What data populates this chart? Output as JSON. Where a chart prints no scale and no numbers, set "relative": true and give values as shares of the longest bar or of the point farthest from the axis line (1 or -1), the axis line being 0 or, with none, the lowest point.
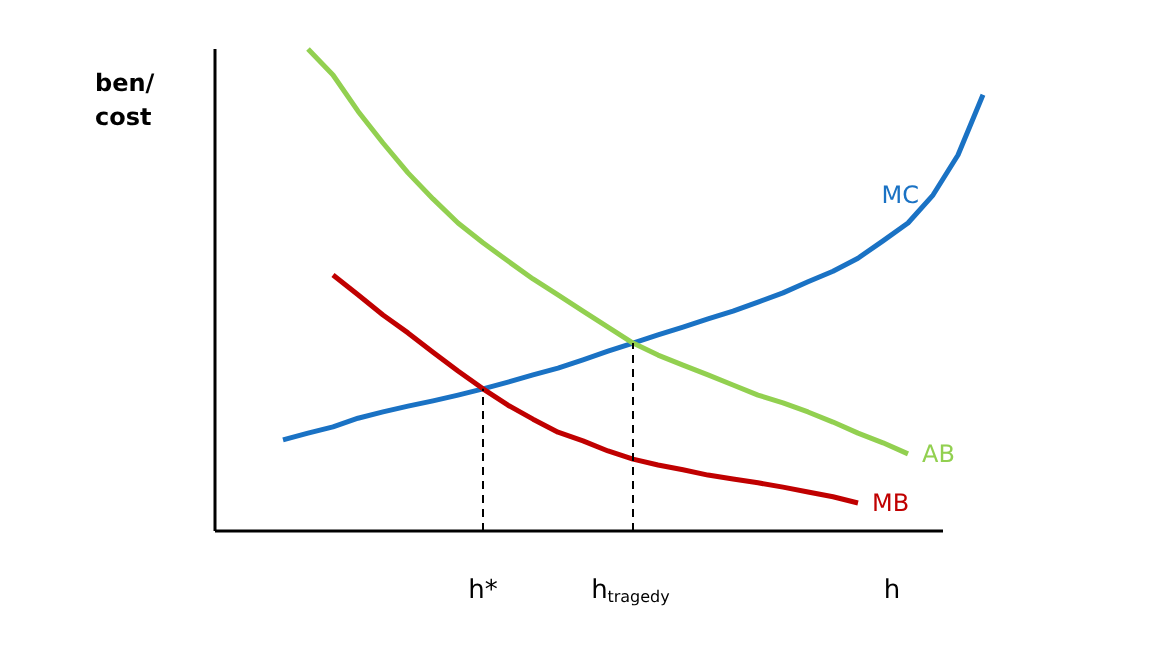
{
  "chart_data": {
    "type": "line",
    "relative": true,
    "ylabel": "ben/\ncost",
    "xlabel": "h",
    "categories": [
      null,
      null,
      null,
      null,
      null,
      null,
      null,
      null,
      "h*",
      null,
      null,
      null,
      null,
      null,
      "h$_{tragedy}$",
      null,
      null,
      null,
      null,
      null,
      null,
      null,
      null,
      null,
      null,
      null,
      null,
      null,
      null
    ],
    "grid": false,
    "marker": "none",
    "line_style": "solid",
    "ref_lines": [
      {
        "axis": "x",
        "value": "h*",
        "color": "#000000",
        "line_style": "dashed"
      },
      {
        "axis": "x",
        "value": "h$_{tragedy}$",
        "color": "#000000",
        "line_style": "dashed"
      }
    ],
    "series": [
      {
        "name": "MC",
        "color": "#1a72c4",
        "values": [
          0.189,
          0.203,
          0.216,
          0.234,
          0.247,
          0.259,
          0.27,
          0.282,
          0.295,
          0.309,
          0.324,
          0.338,
          0.355,
          0.373,
          0.39,
          0.407,
          0.423,
          0.44,
          0.456,
          0.475,
          0.494,
          0.517,
          0.539,
          0.566,
          0.602,
          0.639,
          0.697,
          0.78,
          0.905
        ]
      },
      {
        "name": "AB",
        "color": "#92d050",
        "values": [
          null,
          1.0,
          0.946,
          0.871,
          0.805,
          0.743,
          0.689,
          0.639,
          0.598,
          0.56,
          0.523,
          0.49,
          0.456,
          0.423,
          0.39,
          0.365,
          0.344,
          0.324,
          0.303,
          0.282,
          0.266,
          0.247,
          0.226,
          0.203,
          0.183,
          0.16,
          null,
          null,
          null
        ]
      },
      {
        "name": "MB",
        "color": "#c00000",
        "values": [
          null,
          null,
          0.531,
          0.49,
          0.448,
          0.411,
          0.371,
          0.332,
          0.295,
          0.261,
          0.232,
          0.205,
          0.187,
          0.166,
          0.149,
          0.137,
          0.127,
          0.116,
          0.108,
          0.1,
          0.091,
          0.081,
          0.071,
          0.058,
          null,
          null,
          null,
          null,
          null
        ]
      }
    ]
  }
}
